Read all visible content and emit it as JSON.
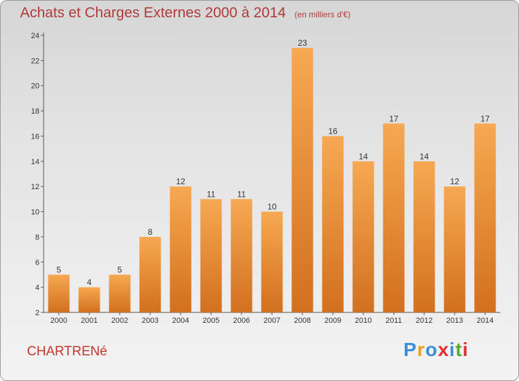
{
  "title": "Achats et Charges Externes 2000 à 2014",
  "subtitle": "(en milliers d'€)",
  "commune": "CHARTRENé",
  "logo": {
    "letters": [
      "P",
      "r",
      "o",
      "x",
      "i",
      "t",
      "i"
    ],
    "colors": [
      "#3a8fd8",
      "#e8a020",
      "#3a8fd8",
      "#e03030",
      "#3a8fd8",
      "#5aaa30",
      "#e03030"
    ]
  },
  "colors": {
    "bar_top": "#f7a852",
    "bar_bottom": "#d2701f",
    "title": "#b03a3a"
  },
  "chart_data": {
    "type": "bar",
    "title": "Achats et Charges Externes 2000 à 2014",
    "subtitle": "(en milliers d'€)",
    "categories": [
      "2000",
      "2001",
      "2002",
      "2003",
      "2004",
      "2005",
      "2006",
      "2007",
      "2008",
      "2009",
      "2010",
      "2011",
      "2012",
      "2013",
      "2014"
    ],
    "values": [
      5,
      4,
      5,
      8,
      12,
      11,
      11,
      10,
      23,
      16,
      14,
      17,
      14,
      12,
      17
    ],
    "ylim": [
      2,
      24
    ],
    "yticks": [
      2,
      4,
      6,
      8,
      10,
      12,
      14,
      16,
      18,
      20,
      22,
      24
    ],
    "grid": false,
    "data_labels": true
  }
}
